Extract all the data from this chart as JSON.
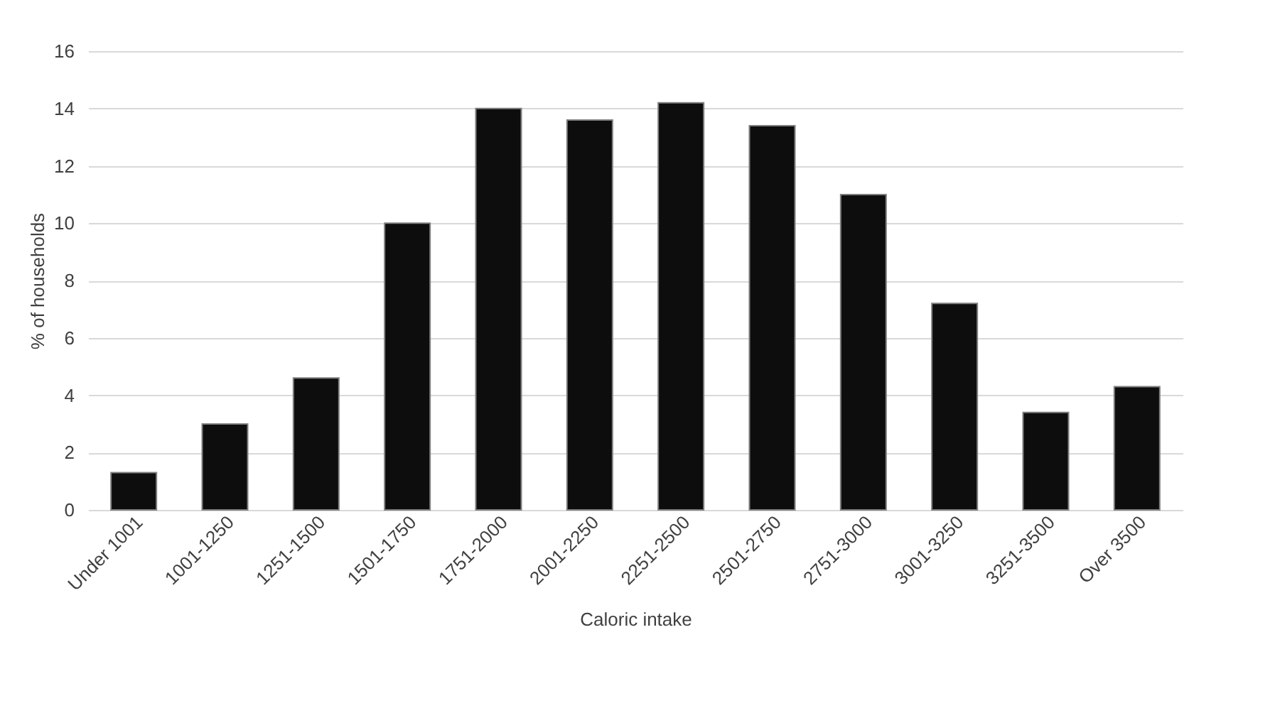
{
  "chart_data": {
    "type": "bar",
    "xlabel": "Caloric intake",
    "ylabel": "% of households",
    "categories": [
      "Under 1001",
      "1001-1250",
      "1251-1500",
      "1501-1750",
      "1751-2000",
      "2001-2250",
      "2251-2500",
      "2501-2750",
      "2751-3000",
      "3001-3250",
      "3251-3500",
      "Over 3500"
    ],
    "values": [
      1.3,
      3.0,
      4.6,
      10.0,
      14.0,
      13.6,
      14.2,
      13.4,
      11.0,
      7.2,
      3.4,
      4.3
    ],
    "color": "#0d0d0d",
    "ylim": [
      0,
      16
    ],
    "yticks": [
      0,
      2,
      4,
      6,
      8,
      10,
      12,
      14,
      16
    ],
    "grid": "y"
  }
}
